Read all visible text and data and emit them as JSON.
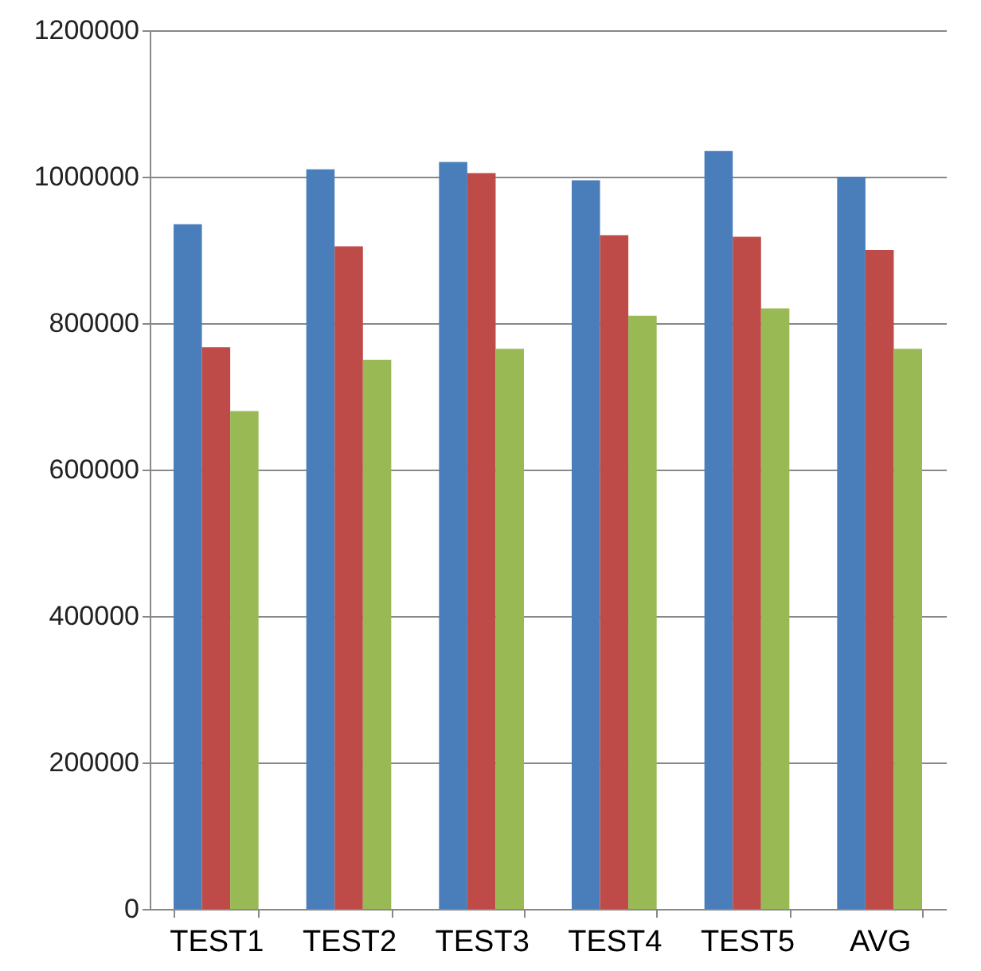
{
  "chart_data": {
    "type": "bar",
    "categories": [
      "TEST1",
      "TEST2",
      "TEST3",
      "TEST4",
      "TEST5",
      "AVG"
    ],
    "series": [
      {
        "color": "#4a7ebb",
        "values": [
          935000,
          1010000,
          1020000,
          995000,
          1035000,
          1000000
        ]
      },
      {
        "color": "#be4b48",
        "values": [
          767000,
          905000,
          1005000,
          920000,
          918000,
          900000
        ]
      },
      {
        "color": "#98b954",
        "values": [
          680000,
          750000,
          765000,
          810000,
          820000,
          765000
        ]
      }
    ],
    "ylim": [
      0,
      1200000
    ],
    "yticks": [
      0,
      200000,
      400000,
      600000,
      800000,
      1000000,
      1200000
    ],
    "grid": "y"
  }
}
